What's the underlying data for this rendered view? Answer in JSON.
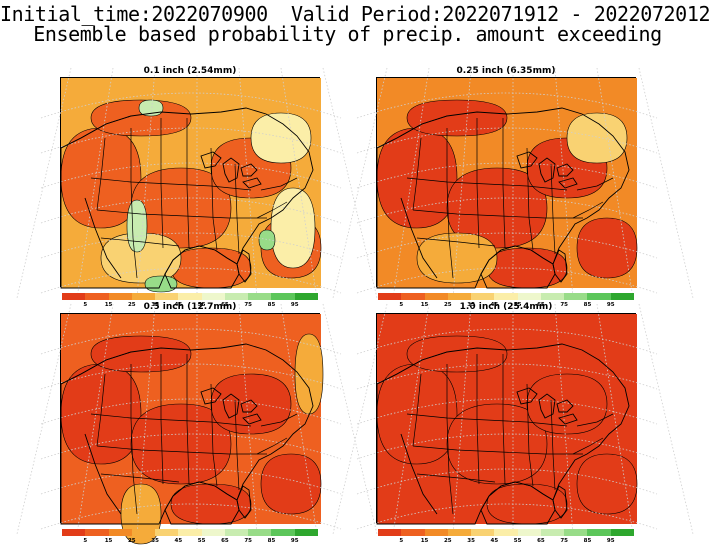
{
  "header": {
    "line1": "Initial_time:2022070900  Valid Period:2022071912 - 2022072012",
    "line2": "Ensemble based probability of precip. amount exceeding"
  },
  "colors": {
    "scale": [
      "#e23c18",
      "#ee6020",
      "#f28a26",
      "#f5ab3a",
      "#f9d272",
      "#fbeea8",
      "#eef7cc",
      "#c8ecb0",
      "#98dc88",
      "#5cc65a",
      "#2ea72e"
    ],
    "water": "#ffffff",
    "border": "#000000",
    "graticule": "#cfcfcf"
  },
  "colorbar": {
    "ticks": [
      "5",
      "15",
      "25",
      "35",
      "45",
      "55",
      "65",
      "75",
      "85",
      "95"
    ]
  },
  "panels": [
    {
      "title": "0.1 inch (2.54mm)",
      "base_level": 3,
      "hot_level": 1,
      "has_green": true
    },
    {
      "title": "0.25 inch (6.35mm)",
      "base_level": 2,
      "hot_level": 0,
      "has_green": false
    },
    {
      "title": "0.5 inch (12.7mm)",
      "base_level": 1,
      "hot_level": 0,
      "has_green": false
    },
    {
      "title": "1.0 inch (25.4mm)",
      "base_level": 0,
      "hot_level": 0,
      "has_green": false
    }
  ]
}
